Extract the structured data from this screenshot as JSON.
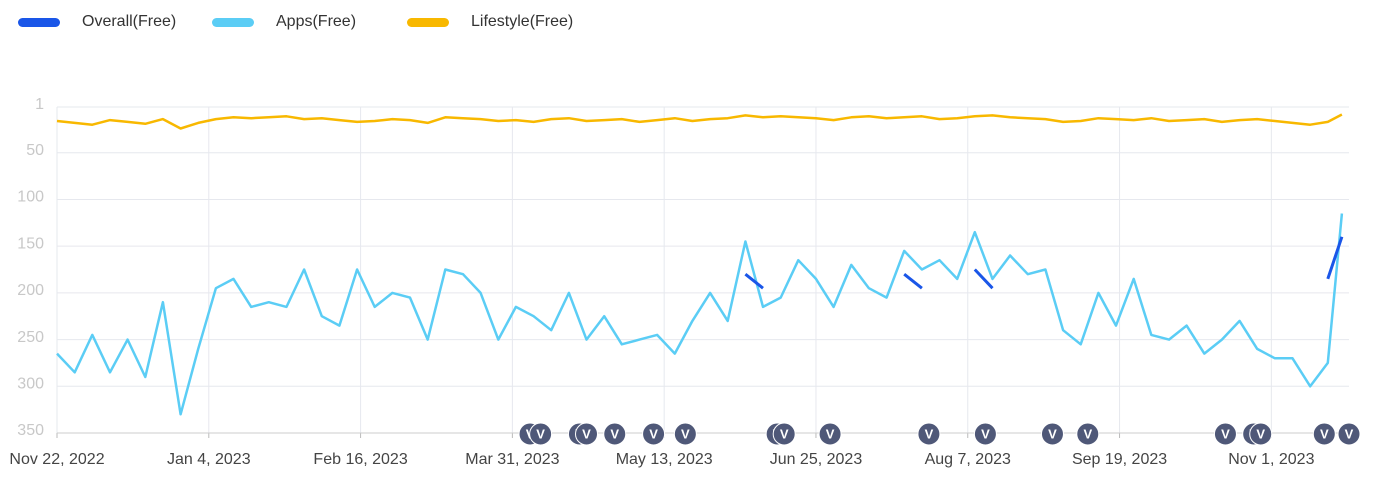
{
  "chart_data": {
    "type": "line",
    "x": [
      "2022-11-22",
      "2022-11-27",
      "2022-12-02",
      "2022-12-07",
      "2022-12-12",
      "2022-12-17",
      "2022-12-22",
      "2022-12-27",
      "2023-01-01",
      "2023-01-06",
      "2023-01-11",
      "2023-01-16",
      "2023-01-21",
      "2023-01-26",
      "2023-01-31",
      "2023-02-05",
      "2023-02-10",
      "2023-02-15",
      "2023-02-20",
      "2023-02-25",
      "2023-03-02",
      "2023-03-07",
      "2023-03-12",
      "2023-03-17",
      "2023-03-22",
      "2023-03-27",
      "2023-04-01",
      "2023-04-06",
      "2023-04-11",
      "2023-04-16",
      "2023-04-21",
      "2023-04-26",
      "2023-05-01",
      "2023-05-06",
      "2023-05-11",
      "2023-05-16",
      "2023-05-21",
      "2023-05-26",
      "2023-05-31",
      "2023-06-05",
      "2023-06-10",
      "2023-06-15",
      "2023-06-20",
      "2023-06-25",
      "2023-06-30",
      "2023-07-05",
      "2023-07-10",
      "2023-07-15",
      "2023-07-20",
      "2023-07-25",
      "2023-07-30",
      "2023-08-04",
      "2023-08-09",
      "2023-08-14",
      "2023-08-19",
      "2023-08-24",
      "2023-08-29",
      "2023-09-03",
      "2023-09-08",
      "2023-09-13",
      "2023-09-18",
      "2023-09-23",
      "2023-09-28",
      "2023-10-03",
      "2023-10-08",
      "2023-10-13",
      "2023-10-18",
      "2023-10-23",
      "2023-10-28",
      "2023-11-02",
      "2023-11-07",
      "2023-11-12",
      "2023-11-17",
      "2023-11-21"
    ],
    "series": [
      {
        "name": "Overall(Free)",
        "color": "#1a56e8",
        "values": [
          null,
          null,
          null,
          null,
          null,
          null,
          null,
          null,
          null,
          null,
          null,
          null,
          null,
          null,
          null,
          null,
          null,
          null,
          null,
          null,
          null,
          null,
          null,
          null,
          null,
          null,
          null,
          null,
          null,
          null,
          null,
          null,
          null,
          null,
          null,
          null,
          null,
          null,
          null,
          180,
          195,
          null,
          null,
          null,
          null,
          null,
          null,
          null,
          180,
          195,
          null,
          null,
          175,
          195,
          null,
          null,
          null,
          null,
          null,
          null,
          null,
          null,
          null,
          null,
          null,
          null,
          null,
          null,
          null,
          null,
          null,
          null,
          185,
          140
        ]
      },
      {
        "name": "Apps(Free)",
        "color": "#5bcdf5",
        "values": [
          265,
          285,
          245,
          285,
          250,
          290,
          210,
          330,
          260,
          195,
          185,
          215,
          210,
          215,
          175,
          225,
          235,
          175,
          215,
          200,
          205,
          250,
          175,
          180,
          200,
          250,
          215,
          225,
          240,
          200,
          250,
          225,
          255,
          250,
          245,
          265,
          230,
          200,
          230,
          145,
          215,
          205,
          165,
          185,
          215,
          170,
          195,
          205,
          155,
          175,
          165,
          185,
          135,
          185,
          160,
          180,
          175,
          240,
          255,
          200,
          235,
          185,
          245,
          250,
          235,
          265,
          250,
          230,
          260,
          270,
          270,
          300,
          275,
          115
        ]
      },
      {
        "name": "Lifestyle(Free)",
        "color": "#f8b800",
        "values": [
          16,
          18,
          20,
          15,
          17,
          19,
          14,
          24,
          18,
          14,
          12,
          13,
          12,
          11,
          14,
          13,
          15,
          17,
          16,
          14,
          15,
          18,
          12,
          13,
          14,
          16,
          15,
          17,
          14,
          13,
          16,
          15,
          14,
          17,
          15,
          13,
          16,
          14,
          13,
          10,
          12,
          11,
          12,
          13,
          15,
          12,
          11,
          13,
          12,
          11,
          14,
          13,
          11,
          10,
          12,
          13,
          14,
          17,
          16,
          13,
          14,
          15,
          13,
          16,
          15,
          14,
          17,
          15,
          14,
          16,
          18,
          20,
          17,
          9
        ]
      }
    ],
    "xlim": [
      "2022-11-22",
      "2023-11-23"
    ],
    "xticks": [
      {
        "value": "2022-11-22",
        "label": "Nov 22, 2022"
      },
      {
        "value": "2023-01-04",
        "label": "Jan 4, 2023"
      },
      {
        "value": "2023-02-16",
        "label": "Feb 16, 2023"
      },
      {
        "value": "2023-03-31",
        "label": "Mar 31, 2023"
      },
      {
        "value": "2023-05-13",
        "label": "May 13, 2023"
      },
      {
        "value": "2023-06-25",
        "label": "Jun 25, 2023"
      },
      {
        "value": "2023-08-07",
        "label": "Aug 7, 2023"
      },
      {
        "value": "2023-09-19",
        "label": "Sep 19, 2023"
      },
      {
        "value": "2023-11-01",
        "label": "Nov 1, 2023"
      }
    ],
    "ylim": [
      1,
      350
    ],
    "yticks": [
      1,
      50,
      100,
      150,
      200,
      250,
      300,
      350
    ],
    "y_inverted": true,
    "grid": true,
    "markers": [
      {
        "x": "2023-04-05",
        "label": "V"
      },
      {
        "x": "2023-04-08",
        "label": "V"
      },
      {
        "x": "2023-04-19",
        "label": "V"
      },
      {
        "x": "2023-04-21",
        "label": "V"
      },
      {
        "x": "2023-04-29",
        "label": "V"
      },
      {
        "x": "2023-05-10",
        "label": "V"
      },
      {
        "x": "2023-05-19",
        "label": "V"
      },
      {
        "x": "2023-06-14",
        "label": "V"
      },
      {
        "x": "2023-06-16",
        "label": "V"
      },
      {
        "x": "2023-06-29",
        "label": "V"
      },
      {
        "x": "2023-07-27",
        "label": "V"
      },
      {
        "x": "2023-08-12",
        "label": "V"
      },
      {
        "x": "2023-08-31",
        "label": "V"
      },
      {
        "x": "2023-09-10",
        "label": "V"
      },
      {
        "x": "2023-10-19",
        "label": "V"
      },
      {
        "x": "2023-10-27",
        "label": "V"
      },
      {
        "x": "2023-10-29",
        "label": "V"
      },
      {
        "x": "2023-11-16",
        "label": "V"
      },
      {
        "x": "2023-11-23",
        "label": "V"
      }
    ]
  }
}
